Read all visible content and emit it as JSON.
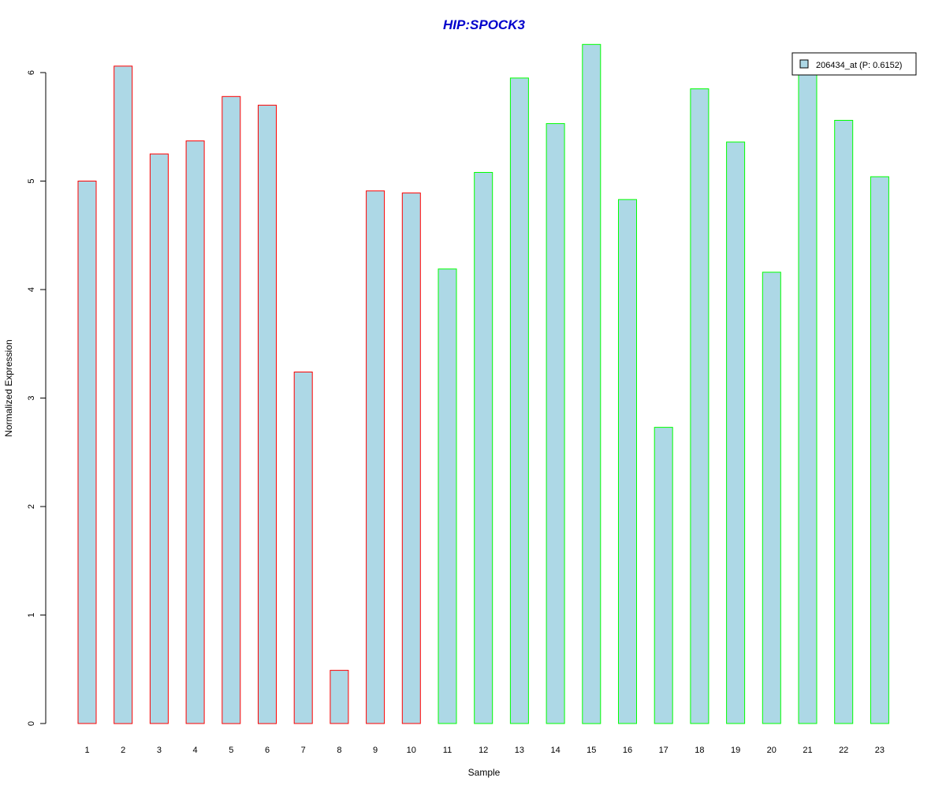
{
  "chart_data": {
    "type": "bar",
    "title": "HIP:SPOCK3",
    "xlabel": "Sample",
    "ylabel": "Normalized Expression",
    "ylim": [
      0,
      6.3
    ],
    "yticks": [
      0,
      1,
      2,
      3,
      4,
      5,
      6
    ],
    "categories": [
      "1",
      "2",
      "3",
      "4",
      "5",
      "6",
      "7",
      "8",
      "9",
      "10",
      "11",
      "12",
      "13",
      "14",
      "15",
      "16",
      "17",
      "18",
      "19",
      "20",
      "21",
      "22",
      "23"
    ],
    "series": [
      {
        "name": "206434_at (P: 0.6152)",
        "values": [
          5.0,
          6.06,
          5.25,
          5.37,
          5.78,
          5.7,
          3.24,
          0.49,
          4.91,
          4.89,
          4.19,
          5.08,
          5.95,
          5.53,
          6.26,
          4.83,
          2.73,
          5.85,
          5.36,
          4.16,
          6.0,
          5.56,
          5.04
        ],
        "group": [
          "red",
          "red",
          "red",
          "red",
          "red",
          "red",
          "red",
          "red",
          "red",
          "red",
          "green",
          "green",
          "green",
          "green",
          "green",
          "green",
          "green",
          "green",
          "green",
          "green",
          "green",
          "green",
          "green"
        ]
      }
    ],
    "legend": {
      "position": "top-right",
      "label": "206434_at (P: 0.6152)"
    },
    "grid": false
  },
  "colors": {
    "title": "#0000CC",
    "bar_fill": "#ADD8E6",
    "red_border": "#FF0000",
    "green_border": "#00FF00",
    "axis": "#000000"
  }
}
